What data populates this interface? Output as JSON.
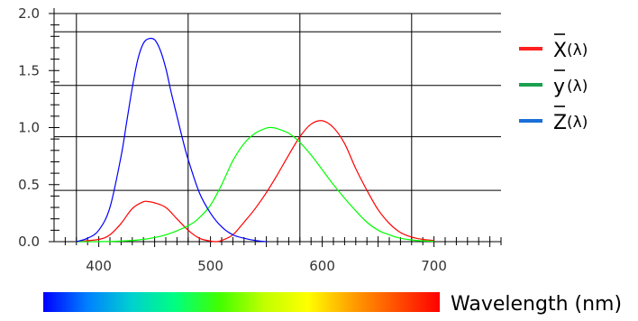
{
  "chart_data": {
    "type": "line",
    "xlabel": "Wavelength (nm)",
    "x_ticks": [
      "400",
      "500",
      "600",
      "700"
    ],
    "y_ticks": [
      "0.0",
      "0.5",
      "1.0",
      "1.5",
      "2.0"
    ],
    "xlim": [
      360,
      760
    ],
    "ylim": [
      0,
      2.0
    ],
    "x_gridlines": [
      380,
      480,
      580,
      680
    ],
    "y_gridlines": [
      0.45,
      0.92,
      1.37,
      1.84
    ],
    "grid": true,
    "legend_position": "right",
    "series": [
      {
        "letter": "X",
        "arg": "(λ)",
        "color": "#ff2020",
        "line_color": "#ff0000",
        "x": [
          380,
          400,
          410,
          420,
          430,
          440,
          445,
          450,
          460,
          470,
          480,
          490,
          500,
          505,
          510,
          520,
          530,
          540,
          550,
          560,
          570,
          580,
          590,
          600,
          610,
          620,
          630,
          640,
          650,
          660,
          670,
          680,
          690,
          700
        ],
        "y": [
          0.0,
          0.02,
          0.06,
          0.16,
          0.29,
          0.35,
          0.35,
          0.34,
          0.3,
          0.2,
          0.1,
          0.03,
          0.005,
          0.0,
          0.01,
          0.06,
          0.17,
          0.29,
          0.43,
          0.59,
          0.76,
          0.92,
          1.03,
          1.06,
          1.0,
          0.86,
          0.64,
          0.45,
          0.28,
          0.16,
          0.08,
          0.04,
          0.02,
          0.01
        ]
      },
      {
        "letter": "y",
        "arg": "(λ)",
        "color": "#1aa050",
        "line_color": "#00ff00",
        "x": [
          380,
          400,
          420,
          440,
          460,
          480,
          490,
          500,
          510,
          520,
          530,
          540,
          550,
          555,
          560,
          570,
          580,
          590,
          600,
          610,
          620,
          630,
          640,
          650,
          660,
          670,
          680,
          690,
          700
        ],
        "y": [
          0.0,
          0.0,
          0.005,
          0.02,
          0.06,
          0.14,
          0.21,
          0.32,
          0.5,
          0.71,
          0.86,
          0.95,
          0.995,
          1.0,
          0.99,
          0.95,
          0.87,
          0.76,
          0.63,
          0.5,
          0.38,
          0.27,
          0.17,
          0.1,
          0.06,
          0.03,
          0.015,
          0.007,
          0.004
        ]
      },
      {
        "letter": "Z",
        "arg": "(λ)",
        "color": "#1a6ed8",
        "line_color": "#0000ff",
        "x": [
          380,
          390,
          400,
          410,
          420,
          425,
          430,
          435,
          440,
          445,
          450,
          455,
          460,
          465,
          470,
          475,
          480,
          490,
          500,
          510,
          520,
          530,
          540,
          550
        ],
        "y": [
          0.0,
          0.03,
          0.1,
          0.3,
          0.75,
          1.05,
          1.35,
          1.6,
          1.74,
          1.78,
          1.77,
          1.68,
          1.52,
          1.3,
          1.1,
          0.9,
          0.72,
          0.43,
          0.25,
          0.13,
          0.06,
          0.03,
          0.01,
          0.0
        ]
      }
    ]
  },
  "spectrum": {
    "colors": [
      "#0000ff",
      "#0080ff",
      "#00d0d0",
      "#00ff80",
      "#40ff00",
      "#c0ff00",
      "#ffff00",
      "#ffa000",
      "#ff5000",
      "#ff0000"
    ]
  }
}
